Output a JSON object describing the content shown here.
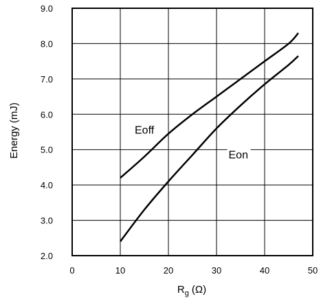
{
  "chart_data": {
    "type": "line",
    "xlabel": {
      "main": "R",
      "sub": "g",
      "unit": "(Ω)"
    },
    "ylabel": "Energy (mJ)",
    "xlim": [
      0,
      50
    ],
    "ylim": [
      2.0,
      9.0
    ],
    "xticks": [
      "0",
      "10",
      "20",
      "30",
      "40",
      "50"
    ],
    "yticks": [
      "2.0",
      "3.0",
      "4.0",
      "5.0",
      "6.0",
      "7.0",
      "8.0",
      "9.0"
    ],
    "grid": true,
    "series": [
      {
        "name": "Eoff",
        "x": [
          10,
          15,
          20,
          25,
          30,
          35,
          40,
          45,
          47
        ],
        "y": [
          4.2,
          4.8,
          5.45,
          6.0,
          6.5,
          7.0,
          7.5,
          8.0,
          8.3
        ]
      },
      {
        "name": "Eon",
        "x": [
          10,
          15,
          20,
          25,
          30,
          35,
          40,
          45,
          47
        ],
        "y": [
          2.4,
          3.3,
          4.1,
          4.85,
          5.6,
          6.25,
          6.85,
          7.4,
          7.65
        ]
      }
    ]
  }
}
